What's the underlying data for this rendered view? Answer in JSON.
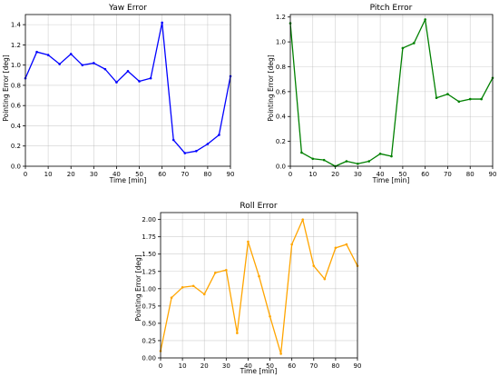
{
  "chart_data": [
    {
      "type": "line",
      "title": "Yaw Error",
      "xlabel": "Time [min]",
      "ylabel": "Pointing Error [deg]",
      "xlim": [
        0,
        90
      ],
      "ylim": [
        0,
        1.5
      ],
      "xticks": [
        "0",
        "10",
        "20",
        "30",
        "40",
        "50",
        "60",
        "70",
        "80",
        "90"
      ],
      "yticks": [
        "0.0",
        "0.2",
        "0.4",
        "0.6",
        "0.8",
        "1.0",
        "1.2",
        "1.4"
      ],
      "grid": true,
      "color": "#0000ff",
      "x": [
        0,
        5,
        10,
        15,
        20,
        25,
        30,
        35,
        40,
        45,
        50,
        55,
        60,
        65,
        70,
        75,
        80,
        85,
        90
      ],
      "y": [
        0.87,
        1.13,
        1.1,
        1.01,
        1.11,
        1.0,
        1.02,
        0.96,
        0.83,
        0.94,
        0.84,
        0.87,
        1.42,
        0.26,
        0.13,
        0.15,
        0.22,
        0.31,
        0.89
      ]
    },
    {
      "type": "line",
      "title": "Pitch Error",
      "xlabel": "Time [min]",
      "ylabel": "Pointing Error [deg]",
      "xlim": [
        0,
        90
      ],
      "ylim": [
        0,
        1.22
      ],
      "xticks": [
        "0",
        "10",
        "20",
        "30",
        "40",
        "50",
        "60",
        "70",
        "80",
        "90"
      ],
      "yticks": [
        "0.0",
        "0.2",
        "0.4",
        "0.6",
        "0.8",
        "1.0",
        "1.2"
      ],
      "grid": true,
      "color": "#008000",
      "x": [
        0,
        5,
        10,
        15,
        20,
        25,
        30,
        35,
        40,
        45,
        50,
        55,
        60,
        65,
        70,
        75,
        80,
        85,
        90
      ],
      "y": [
        1.15,
        0.11,
        0.06,
        0.05,
        0.0,
        0.04,
        0.02,
        0.04,
        0.1,
        0.08,
        0.95,
        0.99,
        1.18,
        0.55,
        0.58,
        0.52,
        0.54,
        0.54,
        0.71
      ]
    },
    {
      "type": "line",
      "title": "Roll Error",
      "xlabel": "Time [min]",
      "ylabel": "Pointing Error [deg]",
      "xlim": [
        0,
        90
      ],
      "ylim": [
        0,
        2.1
      ],
      "xticks": [
        "0",
        "10",
        "20",
        "30",
        "40",
        "50",
        "60",
        "70",
        "80",
        "90"
      ],
      "yticks": [
        "0.00",
        "0.25",
        "0.50",
        "0.75",
        "1.00",
        "1.25",
        "1.50",
        "1.75",
        "2.00"
      ],
      "grid": true,
      "color": "#ffa500",
      "x": [
        0,
        5,
        10,
        15,
        20,
        25,
        30,
        35,
        40,
        45,
        50,
        55,
        60,
        65,
        70,
        75,
        80,
        85,
        90
      ],
      "y": [
        0.1,
        0.87,
        1.02,
        1.04,
        0.92,
        1.23,
        1.27,
        0.36,
        1.68,
        1.18,
        0.6,
        0.06,
        1.64,
        2.0,
        1.33,
        1.14,
        1.59,
        1.64,
        1.33
      ]
    }
  ]
}
